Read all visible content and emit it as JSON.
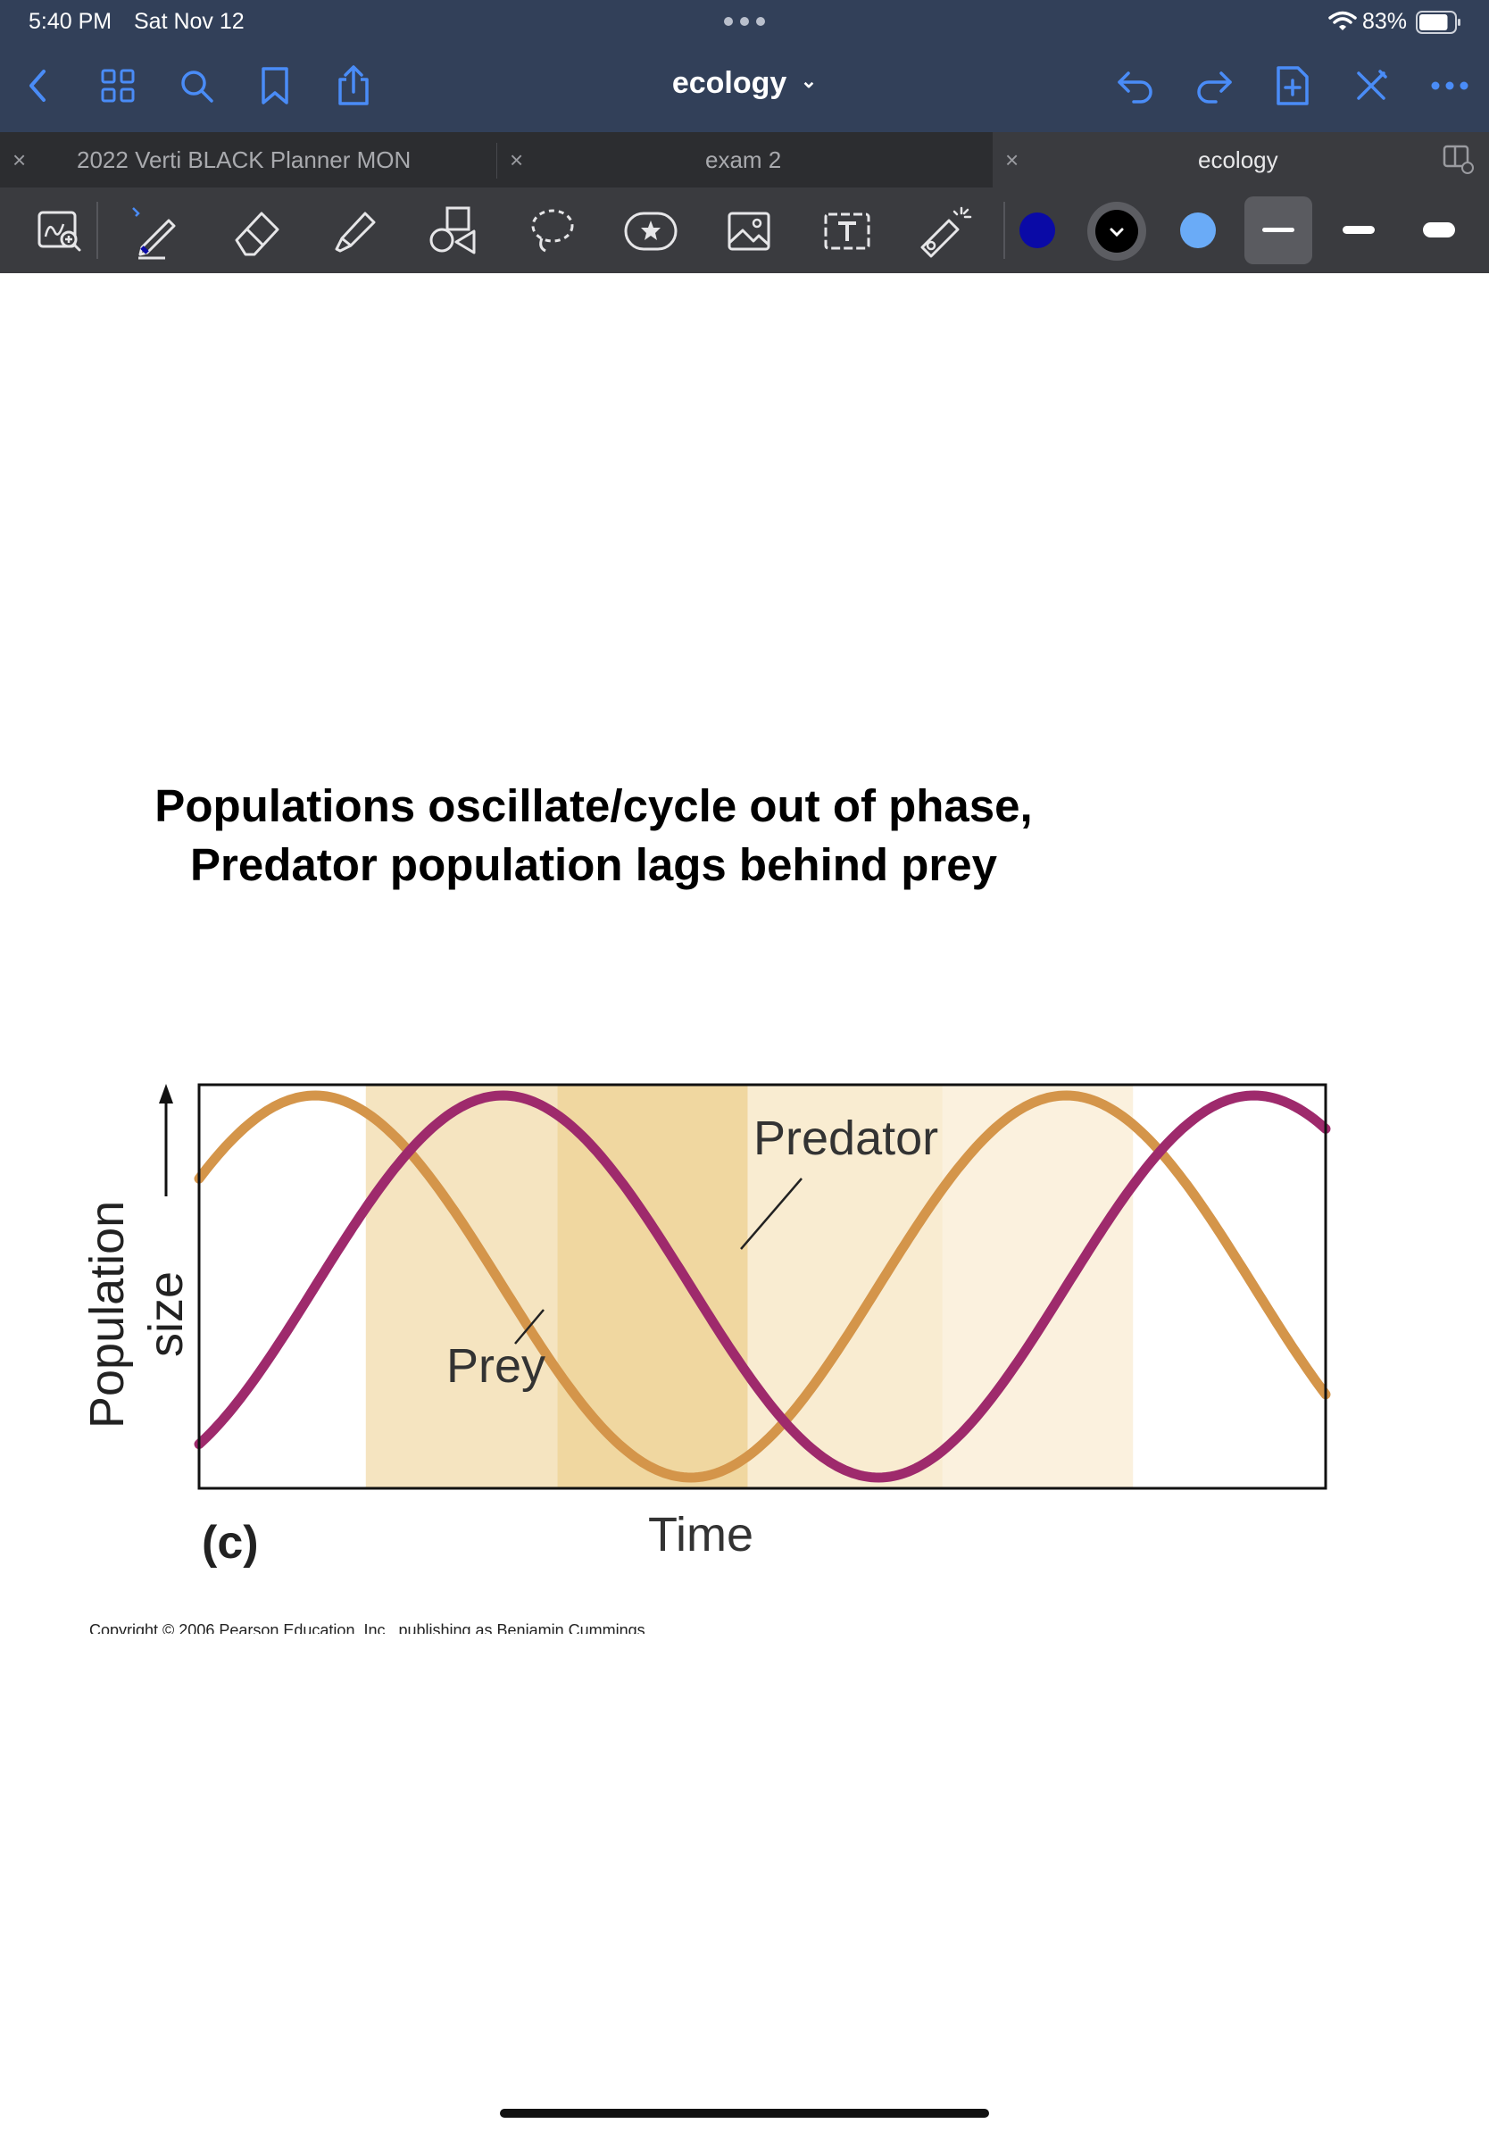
{
  "status": {
    "time": "5:40 PM",
    "date": "Sat Nov 12",
    "battery": "83%",
    "battery_level": 0.83
  },
  "nav": {
    "title": "ecology",
    "title_chevron": "⌄"
  },
  "tabs": [
    {
      "label": "2022 Verti BLACK Planner MON",
      "active": false
    },
    {
      "label": "exam 2",
      "active": false
    },
    {
      "label": "ecology",
      "active": true
    }
  ],
  "toolbar": {
    "colors": [
      "#0a0aa6",
      "#000000",
      "#6aabf7"
    ],
    "accent": "#4a8cf7"
  },
  "page": {
    "heading_line1": "Populations oscillate/cycle out of phase,",
    "heading_line2": "Predator population lags behind prey",
    "copyright": "Copyright © 2006 Pearson Education, Inc., publishing as Benjamin Cummings"
  },
  "chart_data": {
    "type": "line",
    "title": "",
    "panel_label": "(c)",
    "xlabel": "Time",
    "ylabel": "Population size",
    "ylabel_lines": [
      "Population",
      "size"
    ],
    "grid": false,
    "series": [
      {
        "name": "Prey",
        "color": "#d4954a",
        "phase_periods": 0.0
      },
      {
        "name": "Predator",
        "color": "#9e2a6c",
        "phase_periods": 0.25
      }
    ],
    "cycles_shown": 1.5,
    "shaded_bands": [
      {
        "from": 0.148,
        "to": 0.318,
        "color": "#f5e4c0"
      },
      {
        "from": 0.318,
        "to": 0.487,
        "color": "#f0d7a0"
      },
      {
        "from": 0.487,
        "to": 0.66,
        "color": "#f9ecd1"
      },
      {
        "from": 0.66,
        "to": 0.829,
        "color": "#fbf1de"
      }
    ]
  }
}
